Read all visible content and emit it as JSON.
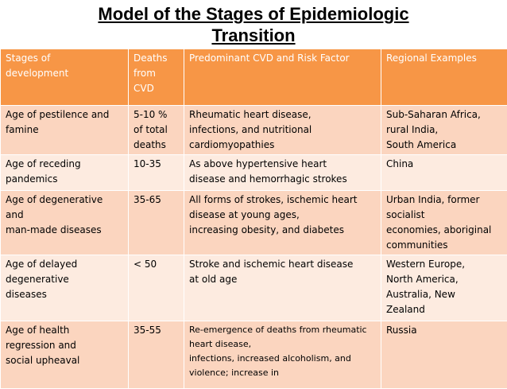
{
  "title": {
    "line1": "Model of the Stages of Epidemiologic",
    "line2": "Transition"
  },
  "colors": {
    "header": "#f79646",
    "row_dark": "#fbd5bf",
    "row_light": "#fdebe0"
  },
  "table": {
    "headers": [
      [
        "Stages of",
        "development"
      ],
      [
        "Deaths",
        "from",
        "CVD"
      ],
      [
        "Predominant CVD and Risk Factor"
      ],
      [
        "Regional Examples"
      ]
    ],
    "rows": [
      {
        "stage": [
          "Age of pestilence and",
          "famine"
        ],
        "deaths": [
          "5-10 %",
          "of total",
          "deaths"
        ],
        "cvd": [
          "Rheumatic heart disease,",
          "infections, and nutritional",
          "cardiomyopathies"
        ],
        "regions": [
          "Sub-Saharan Africa,",
          "rural India,",
          "South America"
        ]
      },
      {
        "stage": [
          "Age of receding",
          "pandemics"
        ],
        "deaths": [
          "10-35"
        ],
        "cvd": [
          "As above hypertensive heart",
          "disease and hemorrhagic strokes"
        ],
        "regions": [
          "China"
        ]
      },
      {
        "stage": [
          "Age of degenerative",
          "and",
          "man-made diseases"
        ],
        "deaths": [
          "35-65"
        ],
        "cvd": [
          "All forms of strokes, ischemic heart",
          "disease at young ages,",
          "increasing obesity, and diabetes"
        ],
        "regions": [
          "Urban India, former",
          "socialist",
          "economies, aboriginal",
          "communities"
        ]
      },
      {
        "stage": [
          "Age of delayed",
          "degenerative",
          "diseases"
        ],
        "deaths": [
          "< 50"
        ],
        "cvd": [
          "Stroke and ischemic heart disease",
          "at old age"
        ],
        "regions": [
          "Western Europe,",
          "North America,",
          "Australia, New",
          "Zealand"
        ]
      },
      {
        "stage": [
          "Age of health",
          "regression and",
          "social upheaval"
        ],
        "deaths": [
          "35-55"
        ],
        "cvd": [
          "Re-emergence of deaths from rheumatic",
          "heart disease,",
          "infections, increased alcoholism, and",
          "violence; increase in"
        ],
        "regions": [
          "Russia"
        ]
      }
    ]
  }
}
